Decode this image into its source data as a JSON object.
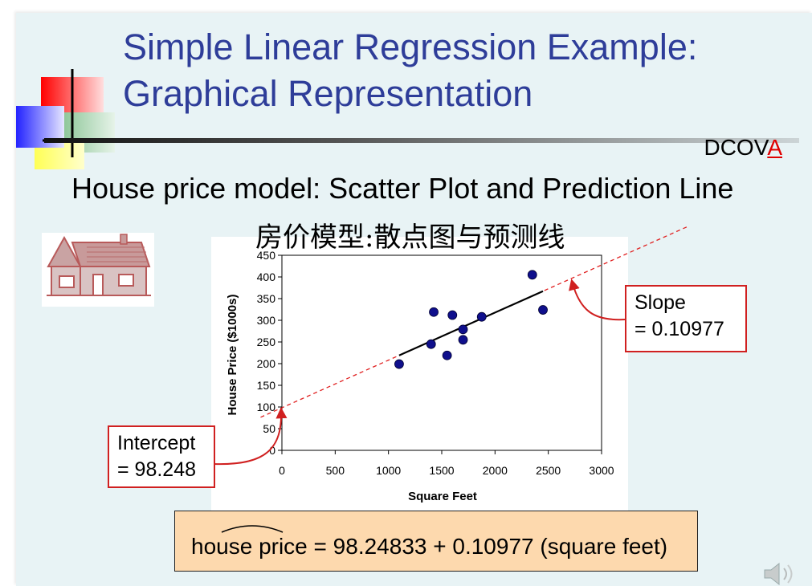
{
  "slide": {
    "title_line1": "Simple Linear Regression Example:",
    "title_line2": "Graphical Representation",
    "section_tag_prefix": "DCOV",
    "section_tag_highlight": "A",
    "subtitle": "House price model:  Scatter Plot and Prediction Line",
    "subtitle_cn": "房价模型:散点图与预测线",
    "colors": {
      "title": "#2e3d99",
      "accent": "#e00000",
      "slide_bg": "#e8f3f5",
      "equation_bg": "#fdd9ae",
      "marker": "#0f0f8c"
    }
  },
  "callouts": {
    "slope_line1": "Slope",
    "slope_line2": "= 0.10977",
    "intercept_line1": "Intercept",
    "intercept_line2": "= 98.248"
  },
  "equation": {
    "lhs": "house price",
    "rest": " = 98.24833 + 0.10977 (square feet)"
  },
  "icons": [
    "house-icon",
    "speaker-icon",
    "decorative-squares"
  ],
  "chart_data": {
    "type": "scatter",
    "title": "",
    "xlabel": "Square Feet",
    "ylabel": "House Price ($1000s)",
    "xlim": [
      0,
      3000
    ],
    "ylim": [
      0,
      450
    ],
    "xticks": [
      "0",
      "500",
      "1000",
      "1500",
      "2000",
      "2500",
      "3000"
    ],
    "yticks": [
      "0",
      "50",
      "100",
      "150",
      "200",
      "250",
      "300",
      "350",
      "400",
      "450"
    ],
    "points": [
      {
        "x": 1100,
        "y": 199
      },
      {
        "x": 1400,
        "y": 245
      },
      {
        "x": 1425,
        "y": 319
      },
      {
        "x": 1550,
        "y": 219
      },
      {
        "x": 1600,
        "y": 312
      },
      {
        "x": 1700,
        "y": 279
      },
      {
        "x": 1700,
        "y": 255
      },
      {
        "x": 1875,
        "y": 308
      },
      {
        "x": 2350,
        "y": 405
      },
      {
        "x": 2450,
        "y": 324
      }
    ],
    "fit_line": {
      "intercept": 98.248,
      "slope": 0.10977,
      "x_from": 1100,
      "x_to": 2450
    },
    "extended_line": {
      "x_from": -200,
      "x_to": 3800
    },
    "grid": false,
    "legend": "none"
  }
}
